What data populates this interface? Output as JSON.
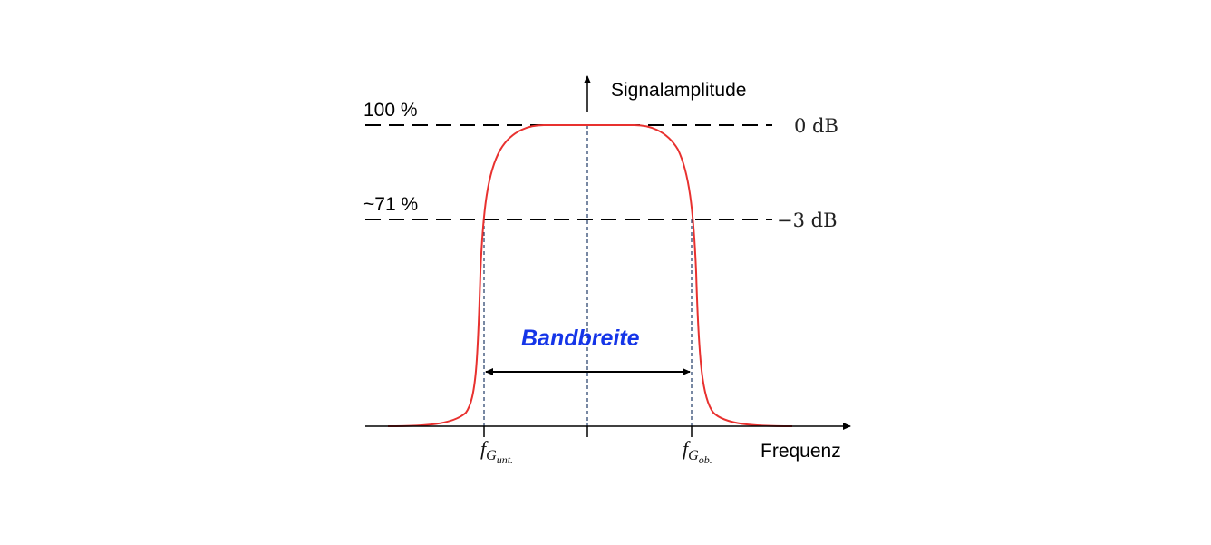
{
  "diagram": {
    "y_axis_label": "Signalamplitude",
    "x_axis_label": "Frequenz",
    "level_100_label": "100 %",
    "level_71_label": "~71 %",
    "db_0_label": "0 dB",
    "db_3_label": "−3 dB",
    "bandwidth_label": "Bandbreite",
    "f_lower": {
      "main": "f",
      "sub1": "G",
      "sub2": "unt."
    },
    "f_upper": {
      "main": "f",
      "sub1": "G",
      "sub2": "ob."
    },
    "colors": {
      "curve": "#e8312f",
      "bandwidth_text": "#1535e8",
      "guide_lines": "#1f3a66",
      "axes": "#000000"
    }
  }
}
